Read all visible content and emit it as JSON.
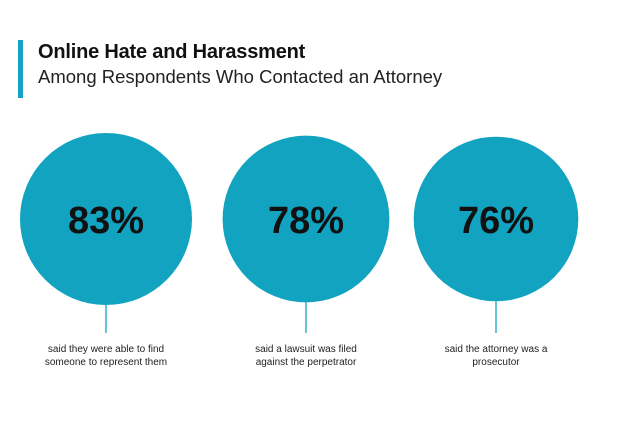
{
  "chart_data": {
    "type": "bubble",
    "title": "Online Hate and Harassment",
    "subtitle": "Among Respondents Who Contacted an Attorney",
    "items": [
      {
        "value": 83,
        "label": "83%",
        "caption": "said they were able to find someone to represent them"
      },
      {
        "value": 78,
        "label": "78%",
        "caption": "said a lawsuit was filed against the perpetrator"
      },
      {
        "value": 76,
        "label": "76%",
        "caption": "said the attorney was a prosecutor"
      }
    ],
    "unit": "%",
    "color": "#12a3c1"
  }
}
